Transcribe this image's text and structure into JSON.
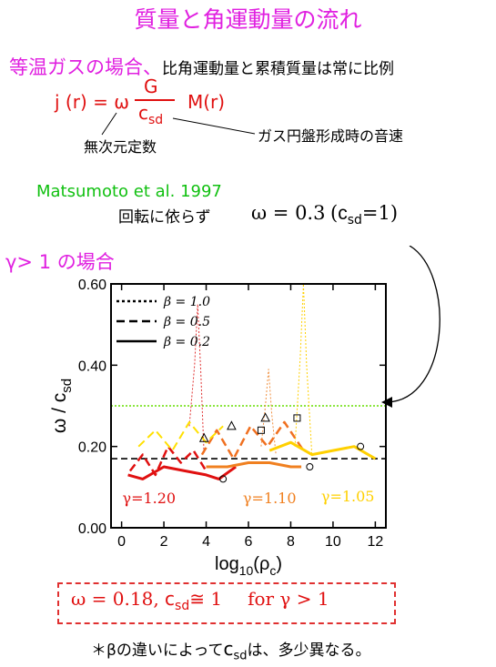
{
  "title": "質量と角運動量の流れ",
  "isothermal": {
    "heading": "等温ガスの場合",
    "sep": "、",
    "desc": "比角運動量と累積質量は常に比例"
  },
  "formula": {
    "lhs": "j (r) = ω",
    "numerator": "G",
    "denom_c": "c",
    "denom_sub": "sd",
    "rhs": "M(r)",
    "note_omega": "無次元定数",
    "note_csd": "ガス円盤形成時の音速"
  },
  "reference": {
    "citation": "Matsumoto et al. 1997",
    "regardless": "回転に依らず",
    "omega_eq": "ω = 0.3",
    "paren_open": "(",
    "c_eq_c": "c",
    "c_eq_sub": "sd",
    "c_eq_val": "=1)"
  },
  "gamma_section": {
    "heading": "γ> 1 の場合"
  },
  "chart_data": {
    "type": "line",
    "xlabel_base": "log",
    "xlabel_sub": "10",
    "xlabel_arg": "(ρ",
    "xlabel_arg_sub": "c",
    "xlabel_close": ")",
    "ylabel_main": "ω / c",
    "ylabel_sub": "sd",
    "xlim": [
      -0.5,
      12.5
    ],
    "ylim": [
      0.0,
      0.6
    ],
    "xticks": [
      "0",
      "2",
      "4",
      "6",
      "8",
      "10",
      "12"
    ],
    "xtick_values": [
      0,
      2,
      4,
      6,
      8,
      10,
      12
    ],
    "yticks": [
      "0.00",
      "0.20",
      "0.40",
      "0.60"
    ],
    "ytick_values": [
      0.0,
      0.2,
      0.4,
      0.6
    ],
    "legend": [
      {
        "label": "β = 1.0",
        "dash": "3,3"
      },
      {
        "label": "β = 0.5",
        "dash": "9,5"
      },
      {
        "label": "β = 0.2",
        "dash": ""
      }
    ],
    "hlines": [
      {
        "y": 0.3,
        "color": "#66dd00",
        "dash": "2,2"
      },
      {
        "y": 0.17,
        "color": "#000000",
        "dash": "7,4"
      }
    ],
    "series": [
      {
        "color": "#e01010",
        "dash": "",
        "width": 3,
        "x": [
          0.3,
          1,
          2,
          3,
          4,
          4.6,
          5.4
        ],
        "y": [
          0.13,
          0.12,
          0.15,
          0.14,
          0.13,
          0.12,
          0.15
        ]
      },
      {
        "color": "#e01010",
        "dash": "9,5",
        "width": 2.5,
        "x": [
          0.4,
          1,
          1.6,
          2.2,
          2.8,
          3.4,
          4
        ],
        "y": [
          0.14,
          0.18,
          0.13,
          0.2,
          0.16,
          0.19,
          0.14
        ]
      },
      {
        "color": "#e03030",
        "dash": "2,2",
        "width": 1,
        "x": [
          3.2,
          3.45,
          3.6,
          3.75,
          3.9
        ],
        "y": [
          0.25,
          0.4,
          0.55,
          0.38,
          0.18
        ]
      },
      {
        "color": "#f08020",
        "dash": "",
        "width": 3,
        "x": [
          4,
          5,
          6,
          7,
          8,
          8.5
        ],
        "y": [
          0.15,
          0.15,
          0.16,
          0.16,
          0.15,
          0.15
        ]
      },
      {
        "color": "#f07020",
        "dash": "9,5",
        "width": 2.5,
        "x": [
          3.8,
          4.5,
          5.3,
          6.1,
          6.9,
          7.7,
          8.6
        ],
        "y": [
          0.18,
          0.24,
          0.17,
          0.25,
          0.2,
          0.26,
          0.19
        ]
      },
      {
        "color": "#f09040",
        "dash": "2,2",
        "width": 1,
        "x": [
          6.6,
          6.8,
          6.95,
          7.1,
          7.3
        ],
        "y": [
          0.2,
          0.3,
          0.39,
          0.28,
          0.18
        ]
      },
      {
        "color": "#ffd000",
        "dash": "",
        "width": 3,
        "x": [
          7,
          8,
          9,
          10,
          11,
          12
        ],
        "y": [
          0.19,
          0.21,
          0.18,
          0.19,
          0.2,
          0.17
        ]
      },
      {
        "color": "#ffe000",
        "dash": "9,5",
        "width": 2,
        "x": [
          0.8,
          1.6,
          2.4,
          3.2,
          4,
          4.8
        ],
        "y": [
          0.2,
          0.24,
          0.19,
          0.26,
          0.21,
          0.25
        ]
      },
      {
        "color": "#ffd000",
        "dash": "2,2",
        "width": 1,
        "x": [
          8.2,
          8.45,
          8.6,
          8.75,
          9
        ],
        "y": [
          0.2,
          0.42,
          0.6,
          0.4,
          0.18
        ]
      }
    ],
    "markers": [
      {
        "x": 3.9,
        "y": 0.22,
        "shape": "triangle"
      },
      {
        "x": 5.2,
        "y": 0.25,
        "shape": "triangle"
      },
      {
        "x": 6.8,
        "y": 0.27,
        "shape": "triangle"
      },
      {
        "x": 6.6,
        "y": 0.24,
        "shape": "square"
      },
      {
        "x": 8.3,
        "y": 0.27,
        "shape": "square"
      },
      {
        "x": 4.8,
        "y": 0.12,
        "shape": "circle"
      },
      {
        "x": 8.9,
        "y": 0.15,
        "shape": "circle"
      },
      {
        "x": 11.3,
        "y": 0.2,
        "shape": "circle"
      }
    ],
    "curve_labels": [
      {
        "text": "γ=1.20",
        "x": 1.3,
        "y": 0.06,
        "color": "#e01010"
      },
      {
        "text": "γ=1.10",
        "x": 7.0,
        "y": 0.06,
        "color": "#f08020"
      },
      {
        "text": "γ=1.05",
        "x": 10.7,
        "y": 0.065,
        "color": "#ffd000"
      }
    ]
  },
  "result": {
    "omega": "ω = 0.18,",
    "c": "c",
    "c_sub": "sd",
    "approx": "≅ 1",
    "cond": "for γ > 1"
  },
  "footnote": {
    "prefix": "＊βの違いによって",
    "c": "c",
    "c_sub": "sd",
    "suffix": "は、多少異なる。"
  }
}
